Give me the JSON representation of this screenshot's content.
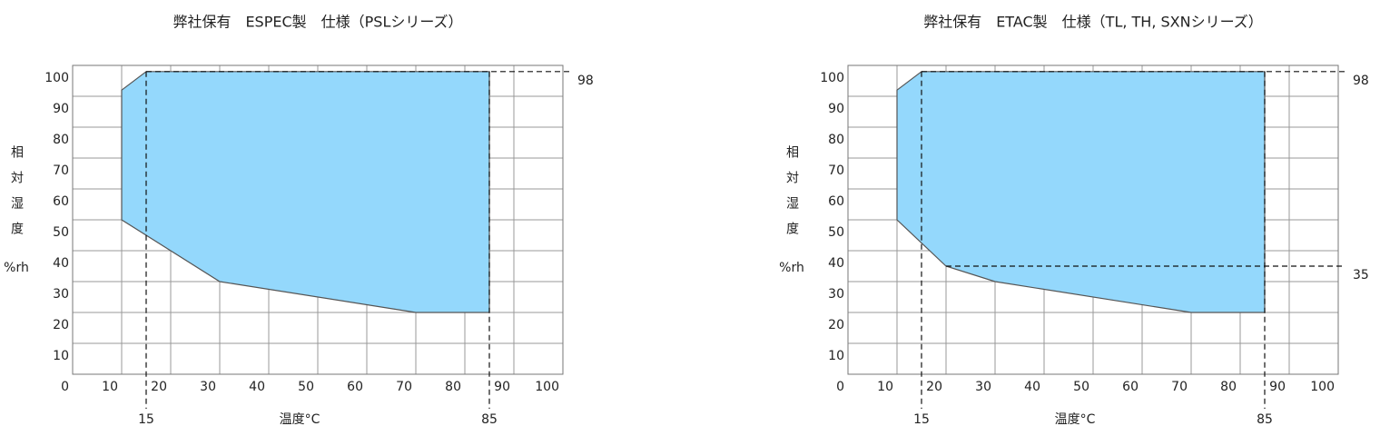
{
  "chart_data": [
    {
      "type": "polygon",
      "title": "弊社保有　ESPEC製　仕様（PSLシリーズ）",
      "x_label": "温度°C",
      "y_label": "相対湿度",
      "y_unit": "%rh",
      "x": [
        10,
        15,
        85,
        85,
        70,
        30,
        10
      ],
      "y": [
        92,
        98,
        98,
        20,
        20,
        30,
        50
      ],
      "color": "#94d8fc",
      "edge_color": "#555555",
      "xlim": [
        0,
        100
      ],
      "ylim": [
        0,
        100
      ],
      "xticks": [
        0,
        10,
        20,
        30,
        40,
        50,
        60,
        70,
        80,
        90,
        100
      ],
      "yticks": [
        10,
        20,
        30,
        40,
        50,
        60,
        70,
        80,
        90,
        100
      ],
      "ref_x": [
        15,
        85
      ],
      "ref_y": [
        98
      ],
      "grid": true
    },
    {
      "type": "polygon",
      "title": "弊社保有　ETAC製　仕様（TL, TH, SXNシリーズ）",
      "x_label": "温度°C",
      "y_label": "相対湿度",
      "y_unit": "%rh",
      "x": [
        10,
        15,
        85,
        85,
        70,
        30,
        20,
        10
      ],
      "y": [
        92,
        98,
        98,
        20,
        20,
        30,
        35,
        50
      ],
      "color": "#94d8fc",
      "edge_color": "#555555",
      "xlim": [
        0,
        100
      ],
      "ylim": [
        0,
        100
      ],
      "xticks": [
        0,
        10,
        20,
        30,
        40,
        50,
        60,
        70,
        80,
        90,
        100
      ],
      "yticks": [
        10,
        20,
        30,
        40,
        50,
        60,
        70,
        80,
        90,
        100
      ],
      "ref_x": [
        15,
        85
      ],
      "ref_y": [
        98,
        35
      ],
      "grid": true
    }
  ]
}
